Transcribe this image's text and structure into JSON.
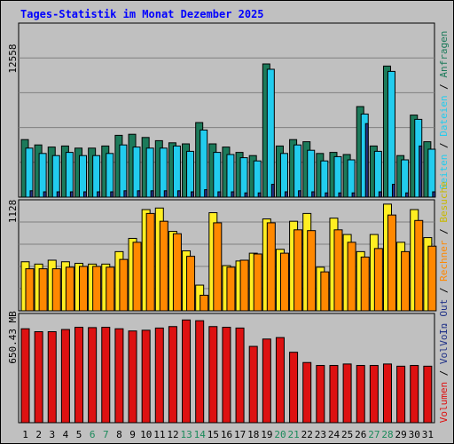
{
  "title": "Tages-Statistik im Monat Dezember 2025",
  "colors": {
    "background": "#c0c0c0",
    "title": "#0000ff",
    "anfragen": "#1c7a5a",
    "dateien": "#22ccee",
    "seiten": "#223388",
    "besuche": "#ffee22",
    "rechner": "#ff8800",
    "volumen": "#dd1111",
    "weekday_label": "#000000",
    "weekend_label": "#1a8a5a"
  },
  "chart_data": [
    {
      "type": "bar",
      "name": "requests-panel",
      "categories": [
        "1",
        "2",
        "3",
        "4",
        "5",
        "6",
        "7",
        "8",
        "9",
        "10",
        "11",
        "12",
        "13",
        "14",
        "15",
        "16",
        "17",
        "18",
        "19",
        "20",
        "21",
        "22",
        "23",
        "24",
        "25",
        "26",
        "27",
        "28",
        "29",
        "30",
        "31"
      ],
      "ytick_label": "12558",
      "ylim": [
        0,
        16000
      ],
      "series": [
        {
          "name": "Anfragen",
          "values": [
            5400,
            4900,
            4700,
            4800,
            4600,
            4600,
            4800,
            5800,
            5900,
            5600,
            5300,
            5100,
            5000,
            7000,
            5000,
            4700,
            4200,
            3900,
            12500,
            4800,
            5400,
            5200,
            4100,
            4200,
            4000,
            8500,
            4800,
            12300,
            3900,
            7700,
            5200
          ]
        },
        {
          "name": "Dateien",
          "values": [
            4600,
            4100,
            3900,
            4200,
            3900,
            3900,
            4100,
            4900,
            4700,
            4600,
            4600,
            4800,
            4300,
            6300,
            4200,
            4000,
            3700,
            3400,
            12000,
            4100,
            4900,
            4400,
            3400,
            3800,
            3500,
            7800,
            4300,
            11800,
            3500,
            7300,
            4500
          ]
        },
        {
          "name": "Seiten",
          "values": [
            600,
            500,
            500,
            500,
            500,
            500,
            500,
            600,
            600,
            600,
            600,
            600,
            500,
            700,
            500,
            500,
            400,
            400,
            1200,
            500,
            600,
            500,
            400,
            400,
            400,
            6900,
            500,
            1200,
            400,
            4800,
            500
          ]
        }
      ]
    },
    {
      "type": "bar",
      "name": "visits-panel",
      "categories": [
        "1",
        "2",
        "3",
        "4",
        "5",
        "6",
        "7",
        "8",
        "9",
        "10",
        "11",
        "12",
        "13",
        "14",
        "15",
        "16",
        "17",
        "18",
        "19",
        "20",
        "21",
        "22",
        "23",
        "24",
        "25",
        "26",
        "27",
        "28",
        "29",
        "30",
        "31"
      ],
      "ytick_label": "1128",
      "ylim": [
        0,
        1380
      ],
      "series": [
        {
          "name": "Besuche",
          "values": [
            630,
            600,
            650,
            630,
            610,
            600,
            600,
            760,
            930,
            1300,
            1320,
            1020,
            770,
            330,
            1260,
            580,
            640,
            740,
            1180,
            790,
            1150,
            1250,
            560,
            1190,
            980,
            760,
            980,
            1370,
            880,
            1300,
            940
          ]
        },
        {
          "name": "Rechner",
          "values": [
            540,
            540,
            540,
            560,
            570,
            570,
            560,
            660,
            880,
            1250,
            1150,
            990,
            700,
            200,
            1130,
            560,
            650,
            730,
            1130,
            740,
            1040,
            1030,
            500,
            1040,
            880,
            690,
            800,
            1230,
            760,
            1160,
            830
          ]
        }
      ]
    },
    {
      "type": "bar",
      "name": "volume-panel",
      "categories": [
        "1",
        "2",
        "3",
        "4",
        "5",
        "6",
        "7",
        "8",
        "9",
        "10",
        "11",
        "12",
        "13",
        "14",
        "15",
        "16",
        "17",
        "18",
        "19",
        "20",
        "21",
        "22",
        "23",
        "24",
        "25",
        "26",
        "27",
        "28",
        "29",
        "30",
        "31"
      ],
      "ytick_label": "650.43 MB",
      "ylim": [
        0,
        720
      ],
      "series": [
        {
          "name": "Volumen",
          "values": [
            640,
            620,
            620,
            635,
            650,
            648,
            650,
            640,
            625,
            630,
            645,
            655,
            700,
            695,
            655,
            650,
            645,
            520,
            570,
            580,
            480,
            410,
            390,
            390,
            400,
            390,
            390,
            400,
            385,
            390,
            385
          ]
        }
      ]
    }
  ],
  "weekend_days": [
    "6",
    "7",
    "13",
    "14",
    "20",
    "21",
    "27",
    "28"
  ],
  "side_labels": {
    "top": [
      "Anfragen",
      "Dateien",
      "Seiten"
    ],
    "middle": [
      "Besuche",
      "Rechner",
      "Out",
      "Vol."
    ],
    "bottom": [
      "In",
      "Vol.",
      "Volumen"
    ],
    "separator": " / "
  }
}
